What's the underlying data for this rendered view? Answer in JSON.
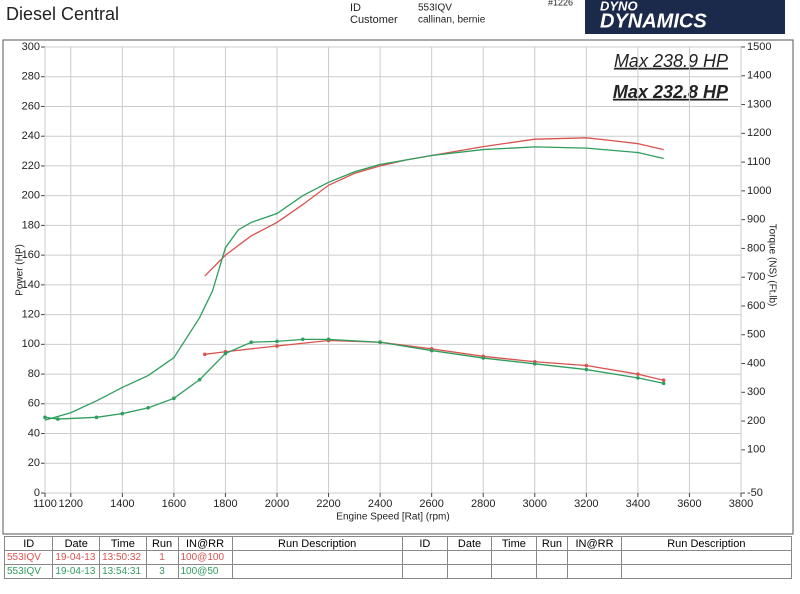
{
  "header": {
    "title": "Diesel Central",
    "id_label": "ID",
    "id": "553IQV",
    "customer_label": "Customer",
    "customer": "callinan, bernie",
    "number": "#1226",
    "logo_top": "DYNO",
    "logo": "DYNAMICS"
  },
  "chart_data": {
    "type": "line",
    "ylabel": "Power (HP)",
    "y2label": "Torque (NS) (Ft.lb)",
    "xlabel": "Engine Speed [Rat] (rpm)",
    "xlim": [
      1100,
      3800
    ],
    "xticks": [
      1100,
      1200,
      1400,
      1600,
      1800,
      2000,
      2200,
      2400,
      2600,
      2800,
      3000,
      3200,
      3400,
      3600,
      3800
    ],
    "ylim": [
      0,
      300
    ],
    "yticks": [
      0,
      20,
      40,
      60,
      80,
      100,
      120,
      140,
      160,
      180,
      200,
      220,
      240,
      260,
      280,
      300
    ],
    "y2lim": [
      -50,
      1500
    ],
    "y2ticks": [
      -50,
      100,
      200,
      300,
      400,
      500,
      600,
      700,
      800,
      900,
      1000,
      1100,
      1200,
      1300,
      1400,
      1500
    ],
    "grid": true,
    "annotations": [
      {
        "text": "Max 238.9 HP",
        "color": "#d9534f"
      },
      {
        "text": "Max 232.8 HP",
        "color": "#2e9e5e"
      }
    ],
    "series": [
      {
        "color": "#d9534f",
        "x": [
          1720,
          1800,
          1900,
          2000,
          2100,
          2200,
          2300,
          2400,
          2500,
          2600,
          2800,
          3000,
          3200,
          3300,
          3400,
          3500
        ],
        "values": [
          146,
          160,
          173,
          182,
          194,
          207,
          215,
          220,
          224,
          227,
          233,
          238,
          238.9,
          237,
          235,
          231
        ]
      },
      {
        "color": "#2e9e5e",
        "x": [
          1100,
          1200,
          1300,
          1400,
          1500,
          1600,
          1700,
          1750,
          1800,
          1850,
          1900,
          2000,
          2100,
          2200,
          2300,
          2400,
          2500,
          2600,
          2800,
          3000,
          3200,
          3400,
          3500
        ],
        "values": [
          49,
          54,
          62,
          71,
          79,
          91,
          118,
          136,
          165,
          177,
          182,
          188,
          200,
          209,
          216,
          221,
          224,
          227,
          231,
          232.8,
          232,
          229,
          225
        ]
      },
      {
        "color": "#d9534f",
        "axis": "y2",
        "markers": true,
        "x": [
          1720,
          1800,
          2000,
          2200,
          2400,
          2600,
          2800,
          3000,
          3200,
          3400,
          3500
        ],
        "values": [
          432,
          441,
          461,
          480,
          474,
          451,
          425,
          406,
          393,
          363,
          342
        ]
      },
      {
        "color": "#2e9e5e",
        "axis": "y2",
        "markers": true,
        "x": [
          1100,
          1150,
          1300,
          1400,
          1500,
          1600,
          1700,
          1800,
          1900,
          2000,
          2100,
          2200,
          2400,
          2600,
          2800,
          3000,
          3200,
          3400,
          3500
        ],
        "values": [
          213,
          207,
          213,
          226,
          246,
          279,
          344,
          435,
          474,
          477,
          484,
          484,
          474,
          445,
          419,
          399,
          379,
          350,
          331
        ]
      }
    ]
  },
  "table": {
    "headers": [
      "ID",
      "Date",
      "Time",
      "Run",
      "IN@RR",
      "Run Description",
      "ID",
      "Date",
      "Time",
      "Run",
      "IN@RR",
      "Run Description"
    ],
    "rows": [
      [
        "553IQV",
        "19-04-13",
        "13:50:32",
        "1",
        "100@100"
      ],
      [
        "553IQV",
        "19-04-13",
        "13:54:31",
        "3",
        "100@50"
      ]
    ],
    "row_colors": [
      "#d9534f",
      "#2e9e5e"
    ]
  }
}
